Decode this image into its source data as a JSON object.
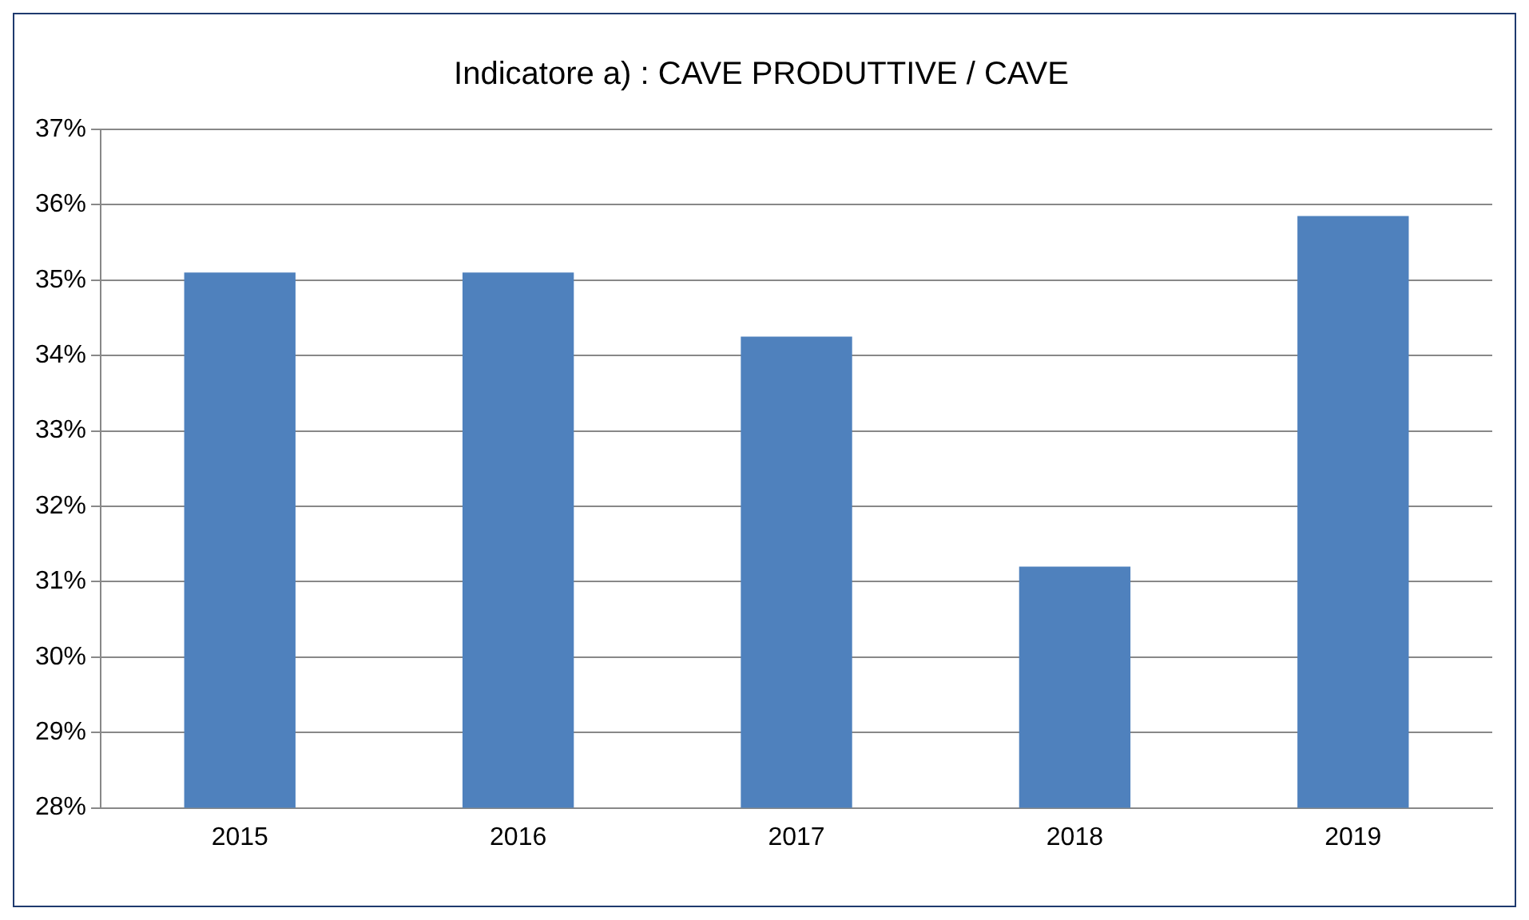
{
  "chart_data": {
    "type": "bar",
    "title": "Indicatore a) : CAVE PRODUTTIVE / CAVE",
    "categories": [
      "2015",
      "2016",
      "2017",
      "2018",
      "2019"
    ],
    "values": [
      35.1,
      35.1,
      34.25,
      31.2,
      35.85
    ],
    "color": "#4f81bd",
    "ylim": [
      28,
      37
    ],
    "yticks": [
      {
        "value": 28,
        "label": "28%"
      },
      {
        "value": 29,
        "label": "29%"
      },
      {
        "value": 30,
        "label": "30%"
      },
      {
        "value": 31,
        "label": "31%"
      },
      {
        "value": 32,
        "label": "32%"
      },
      {
        "value": 33,
        "label": "33%"
      },
      {
        "value": 34,
        "label": "34%"
      },
      {
        "value": 35,
        "label": "35%"
      },
      {
        "value": 36,
        "label": "36%"
      },
      {
        "value": 37,
        "label": "37%"
      }
    ],
    "grid": "y",
    "legend": false
  }
}
